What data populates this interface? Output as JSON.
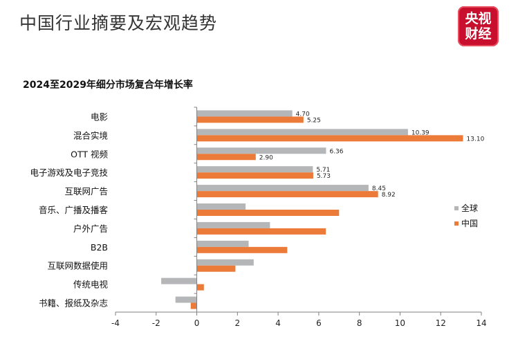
{
  "header": {
    "title": "中国行业摘要及宏观趋势",
    "logo_line1": "央视",
    "logo_line2": "财经"
  },
  "colors": {
    "global": "#b5b6b8",
    "china": "#ec7b3a",
    "axis": "#7f7f7f"
  },
  "chart_data": {
    "type": "bar",
    "orientation": "horizontal",
    "title": "2024至2029年细分市场复合年增长率",
    "categories": [
      "电影",
      "混合实境",
      "OTT 视频",
      "电子游戏及电子竞技",
      "互联网广告",
      "音乐、广播及播客",
      "户外广告",
      "B2B",
      "互联网数据使用",
      "传统电视",
      "书籍、报纸及杂志"
    ],
    "series": [
      {
        "name": "全球",
        "color": "#b5b6b8",
        "values": [
          4.7,
          10.39,
          6.36,
          5.71,
          8.45,
          2.4,
          3.6,
          2.55,
          2.8,
          -1.75,
          -1.05
        ]
      },
      {
        "name": "中国",
        "color": "#ec7b3a",
        "values": [
          5.25,
          13.1,
          2.9,
          5.73,
          8.92,
          7.0,
          6.35,
          4.45,
          1.9,
          0.35,
          -0.3
        ]
      }
    ],
    "data_labels": [
      [
        "4.70",
        "10.39",
        "6.36",
        "5.71",
        "8.45",
        "",
        "",
        "",
        "",
        "",
        ""
      ],
      [
        "5.25",
        "13.10",
        "2.90",
        "5.73",
        "8.92",
        "",
        "",
        "",
        "",
        "",
        ""
      ]
    ],
    "xlim": [
      -4,
      14
    ],
    "xticks": [
      "-4",
      "-2",
      "0",
      "2",
      "4",
      "6",
      "8",
      "10",
      "12",
      "14"
    ],
    "grid": false,
    "legend": "right"
  }
}
